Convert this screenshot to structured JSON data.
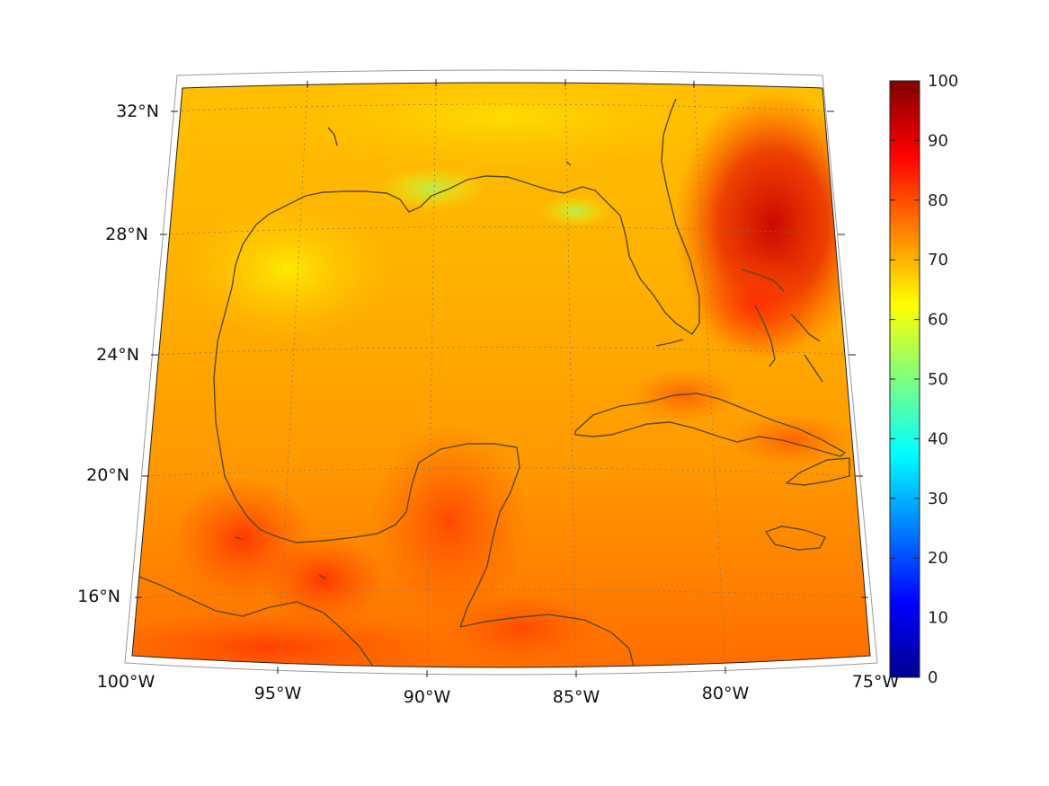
{
  "map": {
    "projection": "lambert-conformal-conic",
    "lon_range": [
      -100,
      -75
    ],
    "lat_range": [
      14,
      33
    ],
    "lat_labels": [
      "32°N",
      "28°N",
      "24°N",
      "20°N",
      "16°N"
    ],
    "lon_labels": [
      "100°W",
      "95°W",
      "90°W",
      "85°W",
      "80°W",
      "75°W"
    ],
    "coastline_color": "#5a4a1e",
    "grid_style": "dotted",
    "field_colormap": "jet"
  },
  "colorbar": {
    "min": 0,
    "max": 100,
    "tick_labels": [
      "100",
      "90",
      "80",
      "70",
      "60",
      "50",
      "40",
      "30",
      "20",
      "10",
      "0"
    ]
  }
}
